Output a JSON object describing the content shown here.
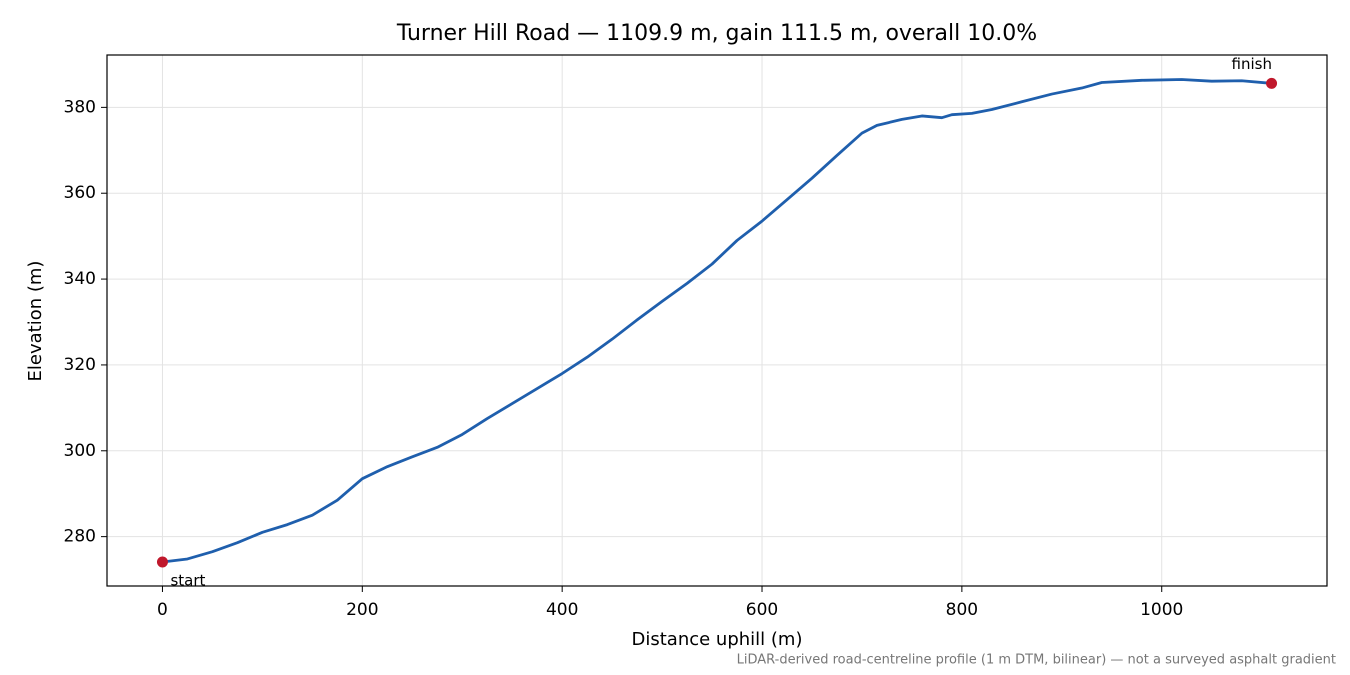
{
  "chart_data": {
    "type": "line",
    "title": "Turner Hill Road — 1109.9 m, gain 111.5 m, overall 10.0%",
    "xlabel": "Distance uphill (m)",
    "ylabel": "Elevation (m)",
    "note": "LiDAR-derived road-centreline profile (1 m DTM, bilinear) — not a surveyed asphalt gradient",
    "grid": true,
    "xlim": [
      -55.5,
      1165.4
    ],
    "xticks": [
      0,
      200,
      400,
      600,
      800,
      1000
    ],
    "ylim": [
      268.5,
      392.2
    ],
    "yticks": [
      280,
      300,
      320,
      340,
      360,
      380
    ],
    "x": [
      0,
      25,
      50,
      75,
      100,
      125,
      150,
      175,
      200,
      225,
      250,
      275,
      300,
      325,
      350,
      375,
      400,
      425,
      450,
      475,
      500,
      525,
      550,
      575,
      600,
      625,
      650,
      675,
      700,
      715,
      740,
      760,
      780,
      790,
      810,
      830,
      860,
      890,
      920,
      940,
      980,
      1020,
      1050,
      1080,
      1109.9
    ],
    "series": [
      {
        "color": "#1f5fad",
        "values": [
          274.1,
          274.8,
          276.5,
          278.6,
          281,
          282.8,
          285,
          288.5,
          293.5,
          296.3,
          298.6,
          300.8,
          303.8,
          307.5,
          311,
          314.5,
          318,
          321.8,
          326,
          330.5,
          334.8,
          339,
          343.5,
          349,
          353.5,
          358.5,
          363.5,
          368.8,
          374,
          375.8,
          377.2,
          378,
          377.6,
          378.3,
          378.6,
          379.5,
          381.3,
          383.1,
          384.5,
          385.8,
          386.3,
          386.5,
          386.1,
          386.2,
          385.6
        ]
      }
    ],
    "markers": {
      "color": "#c0182c",
      "x": [
        0,
        1109.9
      ],
      "values": [
        274.1,
        385.6
      ],
      "labels": [
        "start",
        "finish"
      ]
    }
  }
}
